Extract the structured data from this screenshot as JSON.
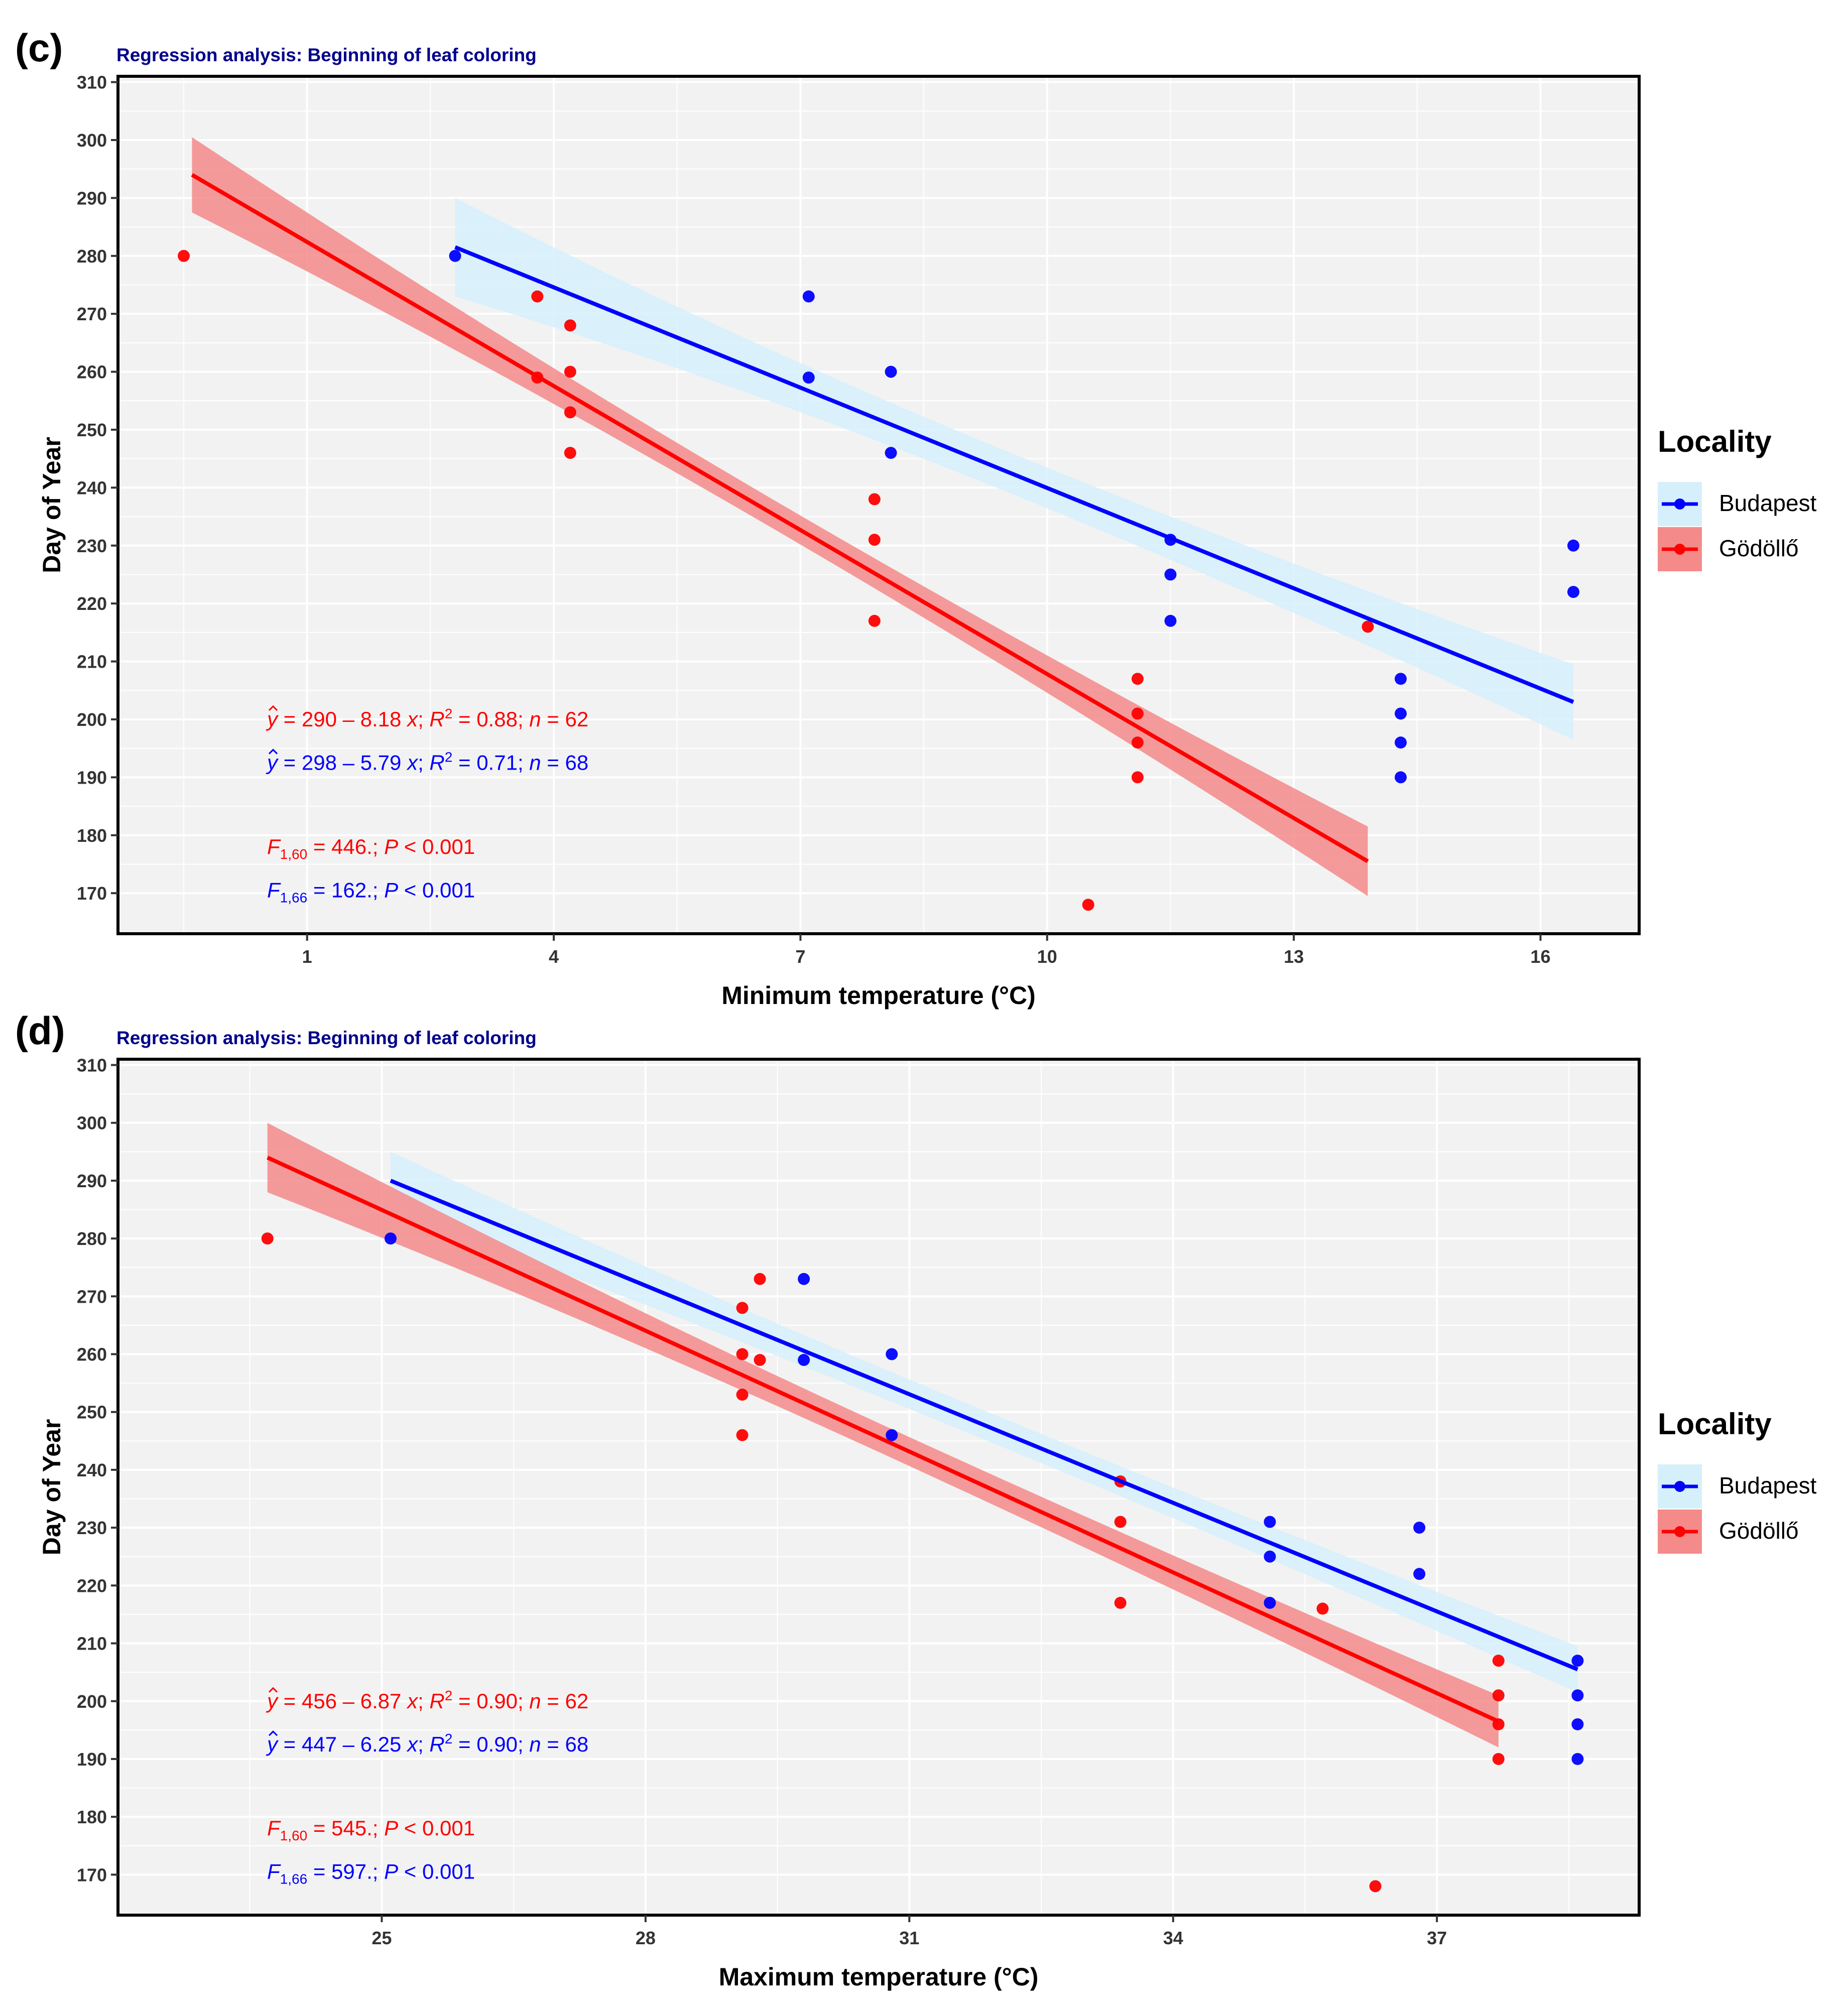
{
  "colors": {
    "budapest": "#0000ff",
    "godollo": "#ff0000",
    "budapest_band": "#d6f0fb",
    "godollo_band": "#f58a8a",
    "title": "#00008b",
    "panel_bg": "#f2f2f2"
  },
  "chart_data": [
    {
      "type": "scatter",
      "panel_label": "(c)",
      "title": "Regression analysis: Beginning of leaf coloring",
      "xlabel": "Minimum temperature (°C)",
      "ylabel": "Day of Year",
      "xlim": [
        -1.3,
        17.2
      ],
      "ylim": [
        163,
        311
      ],
      "xticks": [
        1,
        4,
        7,
        10,
        13,
        16
      ],
      "yticks": [
        170,
        180,
        190,
        200,
        210,
        220,
        230,
        240,
        250,
        260,
        270,
        280,
        290,
        300,
        310
      ],
      "legend": {
        "title": "Locality",
        "position": "right",
        "entries": [
          "Budapest",
          "Gödöllő"
        ]
      },
      "series": [
        {
          "name": "Budapest",
          "color": "#0000ff",
          "band": "#d6f0fb",
          "points": [
            [
              2.8,
              280
            ],
            [
              7.1,
              273
            ],
            [
              7.1,
              259
            ],
            [
              8.1,
              260
            ],
            [
              8.1,
              246
            ],
            [
              11.5,
              231
            ],
            [
              11.5,
              225
            ],
            [
              11.5,
              217
            ],
            [
              14.3,
              207
            ],
            [
              14.3,
              201
            ],
            [
              14.3,
              196
            ],
            [
              14.3,
              190
            ],
            [
              16.4,
              230
            ],
            [
              16.4,
              222
            ]
          ],
          "fit": [
            [
              2.8,
              281.5
            ],
            [
              16.4,
              203
            ]
          ],
          "ci_half": [
            8.5,
            3.5,
            6.5
          ]
        },
        {
          "name": "Gödöllő",
          "color": "#ff0000",
          "band": "#f58a8a",
          "points": [
            [
              -0.5,
              280
            ],
            [
              3.8,
              273
            ],
            [
              3.8,
              259
            ],
            [
              4.2,
              268
            ],
            [
              4.2,
              260
            ],
            [
              4.2,
              253
            ],
            [
              4.2,
              246
            ],
            [
              7.9,
              238
            ],
            [
              7.9,
              231
            ],
            [
              7.9,
              217
            ],
            [
              11.1,
              207
            ],
            [
              11.1,
              201
            ],
            [
              11.1,
              196
            ],
            [
              11.1,
              190
            ],
            [
              10.5,
              168
            ],
            [
              13.9,
              216
            ]
          ],
          "fit": [
            [
              -0.4,
              294
            ],
            [
              13.9,
              175.5
            ]
          ],
          "ci_half": [
            6.5,
            2.5,
            6
          ]
        }
      ],
      "annotations": [
        {
          "color": "#ff0000",
          "yhat": "y",
          "eq": " = 290 – 8.18 ",
          "x": "x",
          "r2": "; R",
          "sup": "2",
          "r2val": " = 0.88; ",
          "n": "n",
          "nval": " = 62"
        },
        {
          "color": "#0000ff",
          "yhat": "y",
          "eq": " = 298 – 5.79 ",
          "x": "x",
          "r2": "; R",
          "sup": "2",
          "r2val": " = 0.71; ",
          "n": "n",
          "nval": " = 68"
        },
        {
          "color": "#ff0000",
          "F": "F",
          "sub": "1,60",
          "fval": " = 446.; ",
          "P": "P",
          "pval": " < 0.001"
        },
        {
          "color": "#0000ff",
          "F": "F",
          "sub": "1,66",
          "fval": " = 162.; ",
          "P": "P",
          "pval": " < 0.001"
        }
      ]
    },
    {
      "type": "scatter",
      "panel_label": "(d)",
      "title": "Regression analysis: Beginning of leaf coloring",
      "xlabel": "Maximum temperature (°C)",
      "ylabel": "Day of Year",
      "xlim": [
        22.0,
        39.3
      ],
      "ylim": [
        163,
        311
      ],
      "xticks": [
        25,
        28,
        31,
        34,
        37
      ],
      "yticks": [
        170,
        180,
        190,
        200,
        210,
        220,
        230,
        240,
        250,
        260,
        270,
        280,
        290,
        300,
        310
      ],
      "legend": {
        "title": "Locality",
        "position": "right",
        "entries": [
          "Budapest",
          "Gödöllő"
        ]
      },
      "series": [
        {
          "name": "Budapest",
          "color": "#0000ff",
          "band": "#d6f0fb",
          "points": [
            [
              25.1,
              280
            ],
            [
              29.8,
              273
            ],
            [
              29.8,
              259
            ],
            [
              30.8,
              260
            ],
            [
              30.8,
              246
            ],
            [
              35.1,
              231
            ],
            [
              35.1,
              225
            ],
            [
              35.1,
              217
            ],
            [
              36.8,
              230
            ],
            [
              36.8,
              222
            ],
            [
              38.6,
              207
            ],
            [
              38.6,
              201
            ],
            [
              38.6,
              196
            ],
            [
              38.6,
              190
            ]
          ],
          "fit": [
            [
              25.1,
              290
            ],
            [
              38.6,
              205.5
            ]
          ],
          "ci_half": [
            5,
            2.5,
            4
          ]
        },
        {
          "name": "Gödöllő",
          "color": "#ff0000",
          "band": "#f58a8a",
          "points": [
            [
              23.7,
              280
            ],
            [
              29.1,
              268
            ],
            [
              29.1,
              260
            ],
            [
              29.1,
              253
            ],
            [
              29.1,
              246
            ],
            [
              29.3,
              273
            ],
            [
              29.3,
              259
            ],
            [
              33.4,
              238
            ],
            [
              33.4,
              231
            ],
            [
              33.4,
              217
            ],
            [
              35.7,
              216
            ],
            [
              36.3,
              168
            ],
            [
              37.7,
              207
            ],
            [
              37.7,
              201
            ],
            [
              37.7,
              196
            ],
            [
              37.7,
              190
            ]
          ],
          "fit": [
            [
              23.7,
              294
            ],
            [
              37.7,
              196.5
            ]
          ],
          "ci_half": [
            6,
            2.5,
            4.5
          ]
        }
      ],
      "annotations": [
        {
          "color": "#ff0000",
          "yhat": "y",
          "eq": " = 456 – 6.87 ",
          "x": "x",
          "r2": "; R",
          "sup": "2",
          "r2val": " = 0.90; ",
          "n": "n",
          "nval": " = 62"
        },
        {
          "color": "#0000ff",
          "yhat": "y",
          "eq": " = 447 – 6.25 ",
          "x": "x",
          "r2": "; R",
          "sup": "2",
          "r2val": " = 0.90; ",
          "n": "n",
          "nval": " = 68"
        },
        {
          "color": "#ff0000",
          "F": "F",
          "sub": "1,60",
          "fval": " = 545.; ",
          "P": "P",
          "pval": " < 0.001"
        },
        {
          "color": "#0000ff",
          "F": "F",
          "sub": "1,66",
          "fval": " = 597.; ",
          "P": "P",
          "pval": " < 0.001"
        }
      ]
    }
  ]
}
